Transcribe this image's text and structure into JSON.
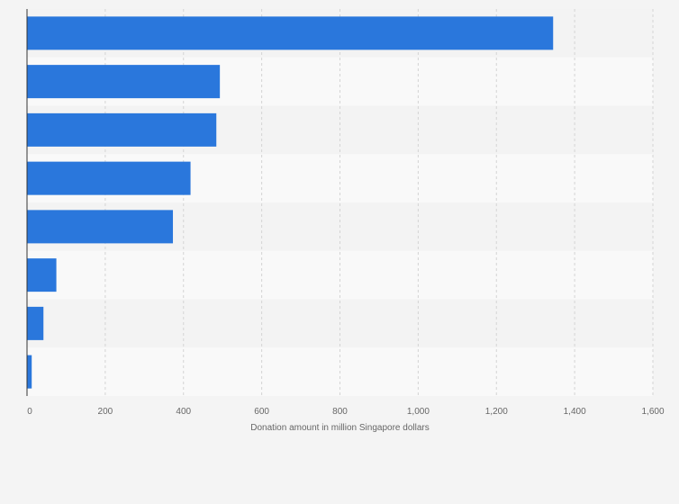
{
  "chart_data": {
    "type": "bar",
    "orientation": "horizontal",
    "categories": [
      "",
      "",
      "",
      "",
      "",
      "",
      "",
      ""
    ],
    "values": [
      1345,
      493,
      484,
      418,
      373,
      75,
      42,
      12
    ],
    "title": "",
    "xlabel": "Donation amount in million Singapore dollars",
    "ylabel": "",
    "xlim": [
      0,
      1600
    ],
    "xticks": [
      0,
      200,
      400,
      600,
      800,
      1000,
      1200,
      1400,
      1600
    ],
    "xtick_labels": [
      "0",
      "200",
      "400",
      "600",
      "800",
      "1,000",
      "1,200",
      "1,400",
      "1,600"
    ],
    "grid": "vertical dashed",
    "legend": "none",
    "colors": {
      "bar": "#2a77dc",
      "background": "#f4f4f4",
      "band_light": "#f9f9f9",
      "band_dark": "#f3f3f3",
      "grid": "#d4d4d4",
      "axis": "#333333",
      "text": "#666666"
    }
  }
}
